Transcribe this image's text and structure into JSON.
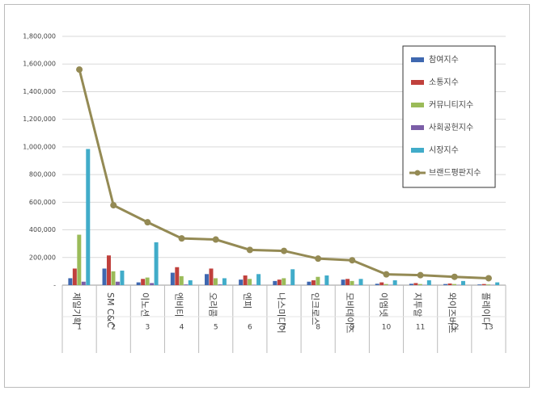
{
  "chart_data": {
    "type": "bar",
    "categories": [
      "제일기획",
      "SM C&C",
      "이노션",
      "엔비티",
      "오리콤",
      "엔피",
      "나스미디어",
      "인크로스",
      "모비데이즈",
      "이엠넷",
      "지투알",
      "와이즈버즈",
      "플레이디"
    ],
    "ranks": [
      1,
      2,
      3,
      4,
      5,
      6,
      7,
      8,
      9,
      10,
      11,
      12,
      13
    ],
    "series": [
      {
        "name": "참여지수",
        "color": "#3f68b0",
        "values": [
          50000,
          120000,
          20000,
          90000,
          80000,
          40000,
          30000,
          25000,
          40000,
          10000,
          10000,
          8000,
          5000
        ]
      },
      {
        "name": "소통지수",
        "color": "#c0403c",
        "values": [
          120000,
          215000,
          45000,
          130000,
          120000,
          70000,
          40000,
          35000,
          45000,
          20000,
          15000,
          12000,
          8000
        ]
      },
      {
        "name": "커뮤니티지수",
        "color": "#9bbb59",
        "values": [
          365000,
          100000,
          55000,
          65000,
          50000,
          45000,
          50000,
          60000,
          30000,
          8000,
          8000,
          8000,
          5000
        ]
      },
      {
        "name": "사회공헌지수",
        "color": "#7b5ea7",
        "values": [
          25000,
          25000,
          15000,
          5000,
          5000,
          3000,
          3000,
          3000,
          3000,
          2000,
          2000,
          2000,
          2000
        ]
      },
      {
        "name": "시장지수",
        "color": "#41acc9",
        "values": [
          985000,
          105000,
          310000,
          35000,
          50000,
          80000,
          115000,
          70000,
          45000,
          35000,
          35000,
          30000,
          20000
        ]
      },
      {
        "name": "브랜드평판지수",
        "color": "#948a54",
        "type": "line",
        "values": [
          1560000,
          578000,
          455000,
          338000,
          330000,
          255000,
          248000,
          192000,
          180000,
          78000,
          72000,
          60000,
          50000
        ]
      }
    ],
    "ylim": [
      0,
      1800000
    ],
    "yticks": [
      {
        "value": 0,
        "label": "-"
      },
      {
        "value": 200000,
        "label": "200,000"
      },
      {
        "value": 400000,
        "label": "400,000"
      },
      {
        "value": 600000,
        "label": "600,000"
      },
      {
        "value": 800000,
        "label": "800,000"
      },
      {
        "value": 1000000,
        "label": "1,000,000"
      },
      {
        "value": 1200000,
        "label": "1,200,000"
      },
      {
        "value": 1400000,
        "label": "1,400,000"
      },
      {
        "value": 1600000,
        "label": "1,600,000"
      },
      {
        "value": 1800000,
        "label": "1,800,000"
      }
    ],
    "grid": true,
    "legend": "upper right"
  }
}
